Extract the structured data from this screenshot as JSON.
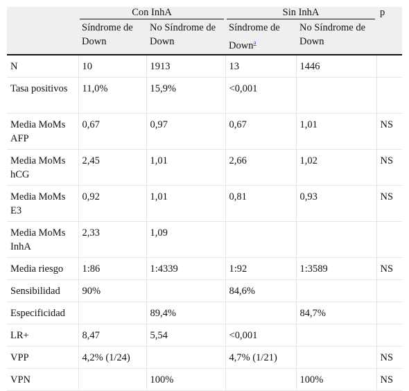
{
  "header": {
    "group_con": "Con InhA",
    "group_sin": "Sin InhA",
    "p": "p",
    "sub": [
      "Síndrome de Down",
      "No Síndrome de Down",
      "Síndrome de Down",
      "No Síndrome de Down"
    ],
    "footnote_mark": "a"
  },
  "rows": [
    {
      "label": "N",
      "cells": [
        "10",
        "1913",
        "13",
        "1446",
        ""
      ]
    },
    {
      "label": "Tasa positivos",
      "cells": [
        "11,0%",
        "15,9%",
        "<0,001",
        "",
        ""
      ]
    },
    {
      "label": "Media MoMs AFP",
      "cells": [
        "0,67",
        "0,97",
        "0,67",
        "1,01",
        "NS"
      ]
    },
    {
      "label": "Media MoMs hCG",
      "cells": [
        "2,45",
        "1,01",
        "2,66",
        "1,02",
        "NS"
      ]
    },
    {
      "label": "Media MoMs E3",
      "cells": [
        "0,92",
        "1,01",
        "0,81",
        "0,93",
        "NS"
      ]
    },
    {
      "label": "Media MoMs InhA",
      "cells": [
        "2,33",
        "1,09",
        "",
        "",
        ""
      ]
    },
    {
      "label": "Media riesgo",
      "cells": [
        "1:86",
        "1:4339",
        "1:92",
        "1:3589",
        "NS"
      ]
    },
    {
      "label": "Sensibilidad",
      "cells": [
        "90%",
        "",
        "84,6%",
        "",
        ""
      ]
    },
    {
      "label": "Especificidad",
      "cells": [
        "",
        "89,4%",
        "",
        "84,7%",
        ""
      ]
    },
    {
      "label": "LR+",
      "cells": [
        "8,47",
        "5,54",
        "<0,001",
        "",
        ""
      ]
    },
    {
      "label": "VPP",
      "cells": [
        "4,2% (1/24)",
        "",
        "4,7% (1/21)",
        "",
        "NS"
      ]
    },
    {
      "label": "VPN",
      "cells": [
        "",
        "100%",
        "",
        "100%",
        "NS"
      ]
    }
  ]
}
